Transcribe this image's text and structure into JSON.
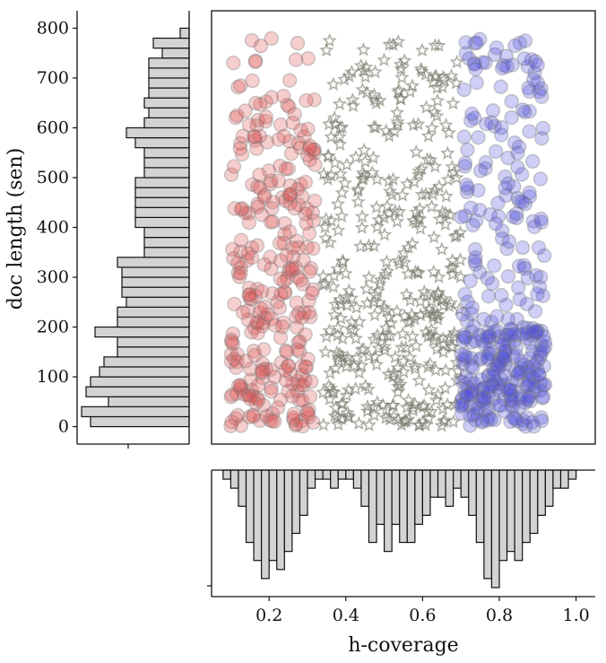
{
  "chart_data": {
    "type": "scatter",
    "title": "",
    "xlabel": "h-coverage",
    "ylabel": "doc length (sen)",
    "xlim": [
      0.05,
      1.05
    ],
    "ylim": [
      -35,
      835
    ],
    "x_ticks": [
      "0.2",
      "0.4",
      "0.6",
      "0.8",
      "1.0"
    ],
    "x_tick_values": [
      0.2,
      0.4,
      0.6,
      0.8,
      1.0
    ],
    "y_ticks": [
      "0",
      "100",
      "200",
      "300",
      "400",
      "500",
      "600",
      "700",
      "800"
    ],
    "y_tick_values": [
      0,
      100,
      200,
      300,
      400,
      500,
      600,
      700,
      800
    ],
    "grid": false,
    "legend": "none",
    "series": [
      {
        "marker": "circle",
        "color": "#e05050",
        "x_range": [
          0.1,
          0.32
        ],
        "y_range": [
          5,
          800
        ],
        "n_points": 300
      },
      {
        "marker": "star",
        "color": "#707060",
        "x_range": [
          0.34,
          0.7
        ],
        "y_range": [
          5,
          800
        ],
        "n_points": 400
      },
      {
        "marker": "circle",
        "color": "#5050e0",
        "x_range": [
          0.7,
          0.92
        ],
        "y_range": [
          5,
          800
        ],
        "n_points": 360
      }
    ],
    "marginal_x_histogram": {
      "bin_edges": [
        0.08,
        0.1,
        0.12,
        0.14,
        0.16,
        0.18,
        0.2,
        0.22,
        0.24,
        0.26,
        0.28,
        0.3,
        0.32,
        0.34,
        0.36,
        0.38,
        0.4,
        0.42,
        0.44,
        0.46,
        0.48,
        0.5,
        0.52,
        0.54,
        0.56,
        0.58,
        0.6,
        0.62,
        0.64,
        0.66,
        0.68,
        0.7,
        0.72,
        0.74,
        0.76,
        0.78,
        0.8,
        0.82,
        0.84,
        0.86,
        0.88,
        0.9,
        0.92,
        0.94,
        0.96,
        0.98,
        1.0
      ],
      "counts": [
        1,
        2,
        4,
        8,
        10,
        12,
        10,
        11,
        9,
        7,
        5,
        2,
        1,
        1,
        2,
        1,
        1,
        2,
        4,
        8,
        6,
        9,
        6,
        8,
        8,
        6,
        5,
        3,
        3,
        4,
        2,
        3,
        5,
        8,
        12,
        13,
        10,
        9,
        10,
        8,
        7,
        5,
        4,
        2,
        2,
        1
      ]
    },
    "marginal_y_histogram": {
      "bin_edges": [
        0,
        20,
        40,
        60,
        80,
        100,
        120,
        140,
        160,
        180,
        200,
        220,
        240,
        260,
        280,
        300,
        320,
        340,
        360,
        380,
        400,
        420,
        440,
        460,
        480,
        500,
        520,
        540,
        560,
        580,
        600,
        620,
        640,
        660,
        680,
        700,
        720,
        740,
        760,
        780,
        800
      ],
      "counts": [
        22,
        24,
        18,
        23,
        22,
        20,
        19,
        16,
        16,
        21,
        16,
        16,
        14,
        15,
        15,
        15,
        16,
        10,
        10,
        10,
        12,
        12,
        12,
        12,
        12,
        10,
        10,
        10,
        12,
        14,
        10,
        9,
        10,
        9,
        9,
        9,
        9,
        6,
        8,
        2
      ]
    }
  }
}
